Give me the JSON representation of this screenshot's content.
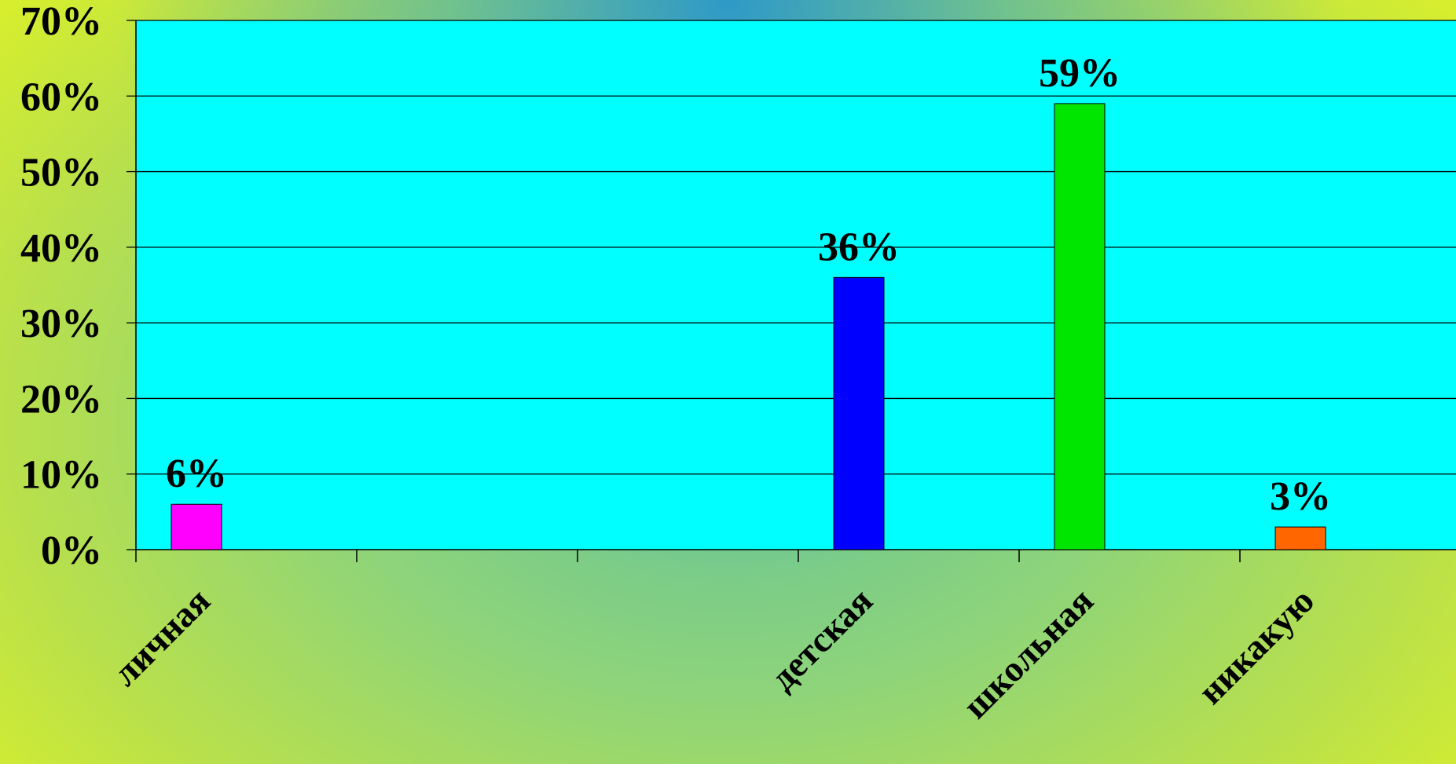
{
  "chart_data": {
    "type": "bar",
    "categories": [
      "личная",
      "",
      "",
      "детская",
      "школьная",
      "никакую"
    ],
    "values": [
      6,
      null,
      null,
      36,
      59,
      3
    ],
    "data_labels": [
      "6%",
      "",
      "",
      "36%",
      "59%",
      "3%"
    ],
    "bar_colors": [
      "#ff00ff",
      "",
      "",
      "#0000ff",
      "#00e600",
      "#ff6600"
    ],
    "y_ticks": [
      "0%",
      "10%",
      "20%",
      "30%",
      "40%",
      "50%",
      "60%",
      "70%"
    ],
    "ylim": [
      0,
      70
    ],
    "y_unit": "%",
    "grid": true,
    "plot_background": "#00ffff",
    "gridline_color": "#000000",
    "title": "",
    "xlabel": "",
    "ylabel": ""
  }
}
